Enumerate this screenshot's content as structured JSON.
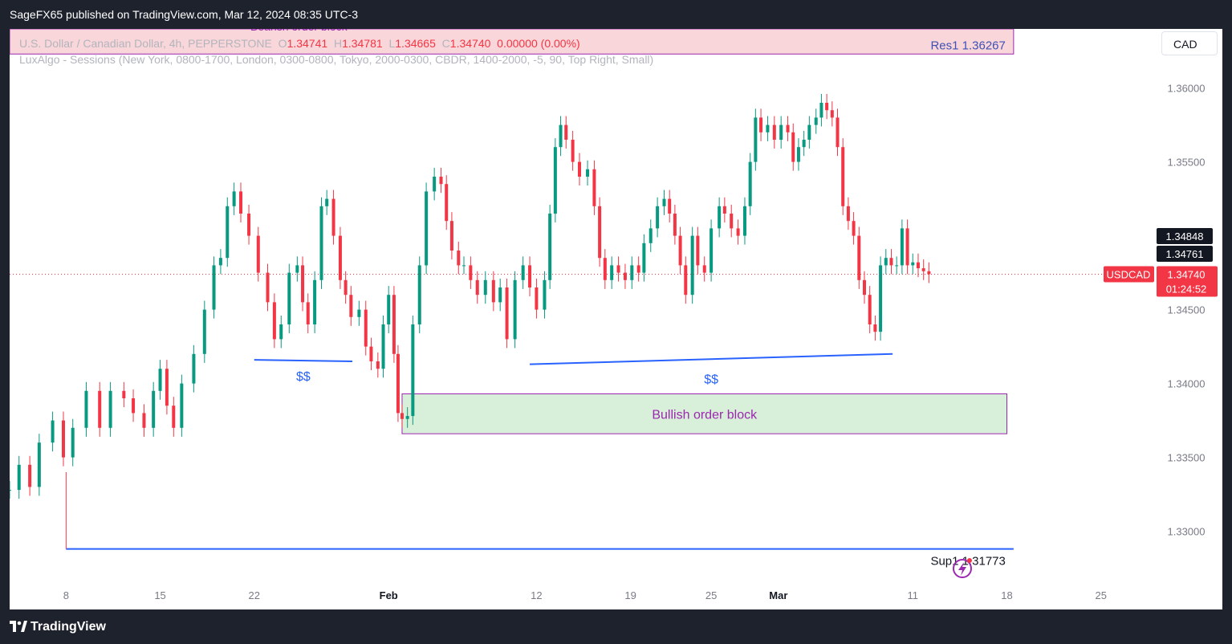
{
  "header": {
    "publish_info": "SageFX65 published on TradingView.com, Mar 12, 2024 08:35 UTC-3"
  },
  "legend": {
    "symbol_line": "U.S. Dollar / Canadian Dollar, 4h, PEPPERSTONE",
    "o_label": "O",
    "o_value": "1.34741",
    "h_label": "H",
    "h_value": "1.34781",
    "l_label": "L",
    "l_value": "1.34665",
    "c_label": "C",
    "c_value": "1.34740",
    "change": "0.00000 (0.00%)",
    "indicator_line": "LuxAlgo - Sessions (New York, 0800-1700, London, 0300-0800, Tokyo, 2000-0300, CBDR, 1400-2000, -5, 90, Top Right, Small)"
  },
  "currency_button": "CAD",
  "footer": {
    "brand": "TradingView"
  },
  "colors": {
    "up": "#089981",
    "down": "#f23645",
    "blue_line": "#2962ff",
    "bearish_fill": "#f9d6d9",
    "bullish_fill": "#d8efd9",
    "zone_border": "#9c27b0"
  },
  "icons": {
    "lightning": "lightning-icon",
    "logo": "tradingview-logo-icon"
  },
  "chart_data": {
    "type": "candlestick",
    "symbol": "USDCAD",
    "timeframe": "4h",
    "ylim": [
      1.3265,
      1.364
    ],
    "y_ticks": [
      1.33,
      1.335,
      1.34,
      1.345,
      1.35,
      1.355,
      1.36
    ],
    "y_tick_labels": [
      "1.33000",
      "1.33500",
      "1.34000",
      "1.34500",
      "1.35000",
      "1.35500",
      "1.36000"
    ],
    "x_tick_labels": [
      "8",
      "15",
      "22",
      "Feb",
      "12",
      "19",
      "25",
      "Mar",
      "11",
      "18",
      "25"
    ],
    "x_tick_days": [
      8,
      15,
      22,
      32,
      43,
      50,
      56,
      61,
      71,
      78,
      85
    ],
    "xlim_days": [
      3.8,
      88.6
    ],
    "last_day": 72.2,
    "close_series": [
      [
        3.8,
        1.3328
      ],
      [
        4.5,
        1.3345
      ],
      [
        5.3,
        1.333
      ],
      [
        6.0,
        1.336
      ],
      [
        7.0,
        1.3375
      ],
      [
        7.8,
        1.335
      ],
      [
        8.5,
        1.337
      ],
      [
        9.5,
        1.3395
      ],
      [
        10.5,
        1.337
      ],
      [
        11.3,
        1.3395
      ],
      [
        12.3,
        1.339
      ],
      [
        13.0,
        1.338
      ],
      [
        13.8,
        1.337
      ],
      [
        14.5,
        1.3395
      ],
      [
        15.0,
        1.341
      ],
      [
        15.5,
        1.3385
      ],
      [
        16.0,
        1.337
      ],
      [
        16.6,
        1.34
      ],
      [
        17.5,
        1.342
      ],
      [
        18.3,
        1.345
      ],
      [
        19.0,
        1.348
      ],
      [
        19.5,
        1.3485
      ],
      [
        20.0,
        1.352
      ],
      [
        20.5,
        1.353
      ],
      [
        21.0,
        1.3515
      ],
      [
        21.6,
        1.35
      ],
      [
        22.3,
        1.3475
      ],
      [
        23.0,
        1.3455
      ],
      [
        23.5,
        1.343
      ],
      [
        24.0,
        1.344
      ],
      [
        24.6,
        1.3475
      ],
      [
        25.2,
        1.348
      ],
      [
        25.6,
        1.3455
      ],
      [
        26.0,
        1.344
      ],
      [
        26.5,
        1.347
      ],
      [
        27.0,
        1.352
      ],
      [
        27.4,
        1.3525
      ],
      [
        27.9,
        1.35
      ],
      [
        28.4,
        1.347
      ],
      [
        28.8,
        1.346
      ],
      [
        29.2,
        1.3445
      ],
      [
        29.8,
        1.345
      ],
      [
        30.3,
        1.3425
      ],
      [
        30.7,
        1.3415
      ],
      [
        31.2,
        1.341
      ],
      [
        31.6,
        1.344
      ],
      [
        32.0,
        1.346
      ],
      [
        32.4,
        1.342
      ],
      [
        32.7,
        1.338
      ],
      [
        33.0,
        1.3376
      ],
      [
        33.4,
        1.3378
      ],
      [
        33.8,
        1.344
      ],
      [
        34.3,
        1.348
      ],
      [
        34.8,
        1.353
      ],
      [
        35.4,
        1.354
      ],
      [
        35.9,
        1.3535
      ],
      [
        36.3,
        1.351
      ],
      [
        36.7,
        1.349
      ],
      [
        37.2,
        1.348
      ],
      [
        37.6,
        1.348
      ],
      [
        38.1,
        1.347
      ],
      [
        38.6,
        1.346
      ],
      [
        39.2,
        1.347
      ],
      [
        39.8,
        1.3455
      ],
      [
        40.3,
        1.3465
      ],
      [
        40.8,
        1.343
      ],
      [
        41.4,
        1.347
      ],
      [
        42.0,
        1.348
      ],
      [
        42.5,
        1.3465
      ],
      [
        43.0,
        1.345
      ],
      [
        43.6,
        1.347
      ],
      [
        44.0,
        1.3515
      ],
      [
        44.4,
        1.356
      ],
      [
        44.8,
        1.3575
      ],
      [
        45.2,
        1.3565
      ],
      [
        45.7,
        1.355
      ],
      [
        46.2,
        1.354
      ],
      [
        46.8,
        1.3545
      ],
      [
        47.3,
        1.352
      ],
      [
        47.7,
        1.3485
      ],
      [
        48.1,
        1.347
      ],
      [
        48.6,
        1.348
      ],
      [
        49.1,
        1.3475
      ],
      [
        49.6,
        1.347
      ],
      [
        50.1,
        1.348
      ],
      [
        50.6,
        1.3475
      ],
      [
        51.0,
        1.3495
      ],
      [
        51.5,
        1.3505
      ],
      [
        52.0,
        1.352
      ],
      [
        52.5,
        1.3525
      ],
      [
        52.9,
        1.3515
      ],
      [
        53.3,
        1.35
      ],
      [
        53.7,
        1.348
      ],
      [
        54.1,
        1.346
      ],
      [
        54.6,
        1.35
      ],
      [
        55.0,
        1.348
      ],
      [
        55.5,
        1.3475
      ],
      [
        56.0,
        1.3505
      ],
      [
        56.6,
        1.352
      ],
      [
        57.0,
        1.3515
      ],
      [
        57.5,
        1.3505
      ],
      [
        58.0,
        1.35
      ],
      [
        58.5,
        1.352
      ],
      [
        58.9,
        1.355
      ],
      [
        59.3,
        1.358
      ],
      [
        59.7,
        1.357
      ],
      [
        60.2,
        1.3575
      ],
      [
        60.7,
        1.3565
      ],
      [
        61.2,
        1.3575
      ],
      [
        61.7,
        1.357
      ],
      [
        62.1,
        1.355
      ],
      [
        62.5,
        1.356
      ],
      [
        62.9,
        1.3565
      ],
      [
        63.3,
        1.3575
      ],
      [
        63.8,
        1.358
      ],
      [
        64.2,
        1.359
      ],
      [
        64.6,
        1.3585
      ],
      [
        65.0,
        1.358
      ],
      [
        65.4,
        1.356
      ],
      [
        65.8,
        1.352
      ],
      [
        66.2,
        1.351
      ],
      [
        66.6,
        1.35
      ],
      [
        67.0,
        1.347
      ],
      [
        67.4,
        1.346
      ],
      [
        67.8,
        1.344
      ],
      [
        68.2,
        1.3435
      ],
      [
        68.6,
        1.348
      ],
      [
        69.0,
        1.3485
      ],
      [
        69.4,
        1.348
      ],
      [
        69.8,
        1.348
      ],
      [
        70.2,
        1.3505
      ],
      [
        70.6,
        1.348
      ],
      [
        71.0,
        1.3482
      ],
      [
        71.4,
        1.3478
      ],
      [
        71.8,
        1.3476
      ],
      [
        72.2,
        1.3474
      ]
    ],
    "annotations": {
      "bearish_order_block": {
        "label": "Bearish order block",
        "y_top": 1.364,
        "y_bottom": 1.3623,
        "x_start": 3.8,
        "x_end": 78.5
      },
      "bullish_order_block": {
        "label": "Bullish order block",
        "y_top": 1.3393,
        "y_bottom": 1.3366,
        "x_start": 33.0,
        "x_end": 78.0
      },
      "res1": {
        "label": "Res1 1.36267",
        "value": 1.36267
      },
      "sup1": {
        "label": "Sup1 1.31773",
        "value": 1.31773,
        "line_y": 1.3288,
        "x_start": 8.0,
        "x_end": 78.5
      },
      "liquidity_lines": [
        {
          "label": "$$",
          "x1": 22.0,
          "y1": 1.3416,
          "x2": 29.3,
          "y2": 1.3415
        },
        {
          "label": "$$",
          "x1": 42.5,
          "y1": 1.3413,
          "x2": 69.5,
          "y2": 1.342
        }
      ],
      "current_price_line": 1.3474
    },
    "price_labels": [
      {
        "text": "1.34848",
        "value": 1.34848,
        "style": "dark"
      },
      {
        "text": "1.34761",
        "value": 1.34761,
        "style": "dark"
      },
      {
        "text": "1.34740",
        "value": 1.3474,
        "style": "red",
        "tag": "USDCAD",
        "countdown": "01:24:52"
      }
    ]
  }
}
